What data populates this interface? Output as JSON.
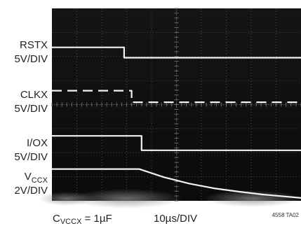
{
  "chart_data": {
    "type": "line",
    "title": "",
    "grid": true,
    "x": {
      "divisions": 10,
      "scale_label": "10µs/DIV",
      "unit": "µs",
      "per_div": 10
    },
    "y": {
      "divisions": 8
    },
    "channels": [
      {
        "name": "RSTX",
        "scale": "5V/DIV",
        "style": "solid",
        "points": [
          [
            0,
            6.38
          ],
          [
            2.9,
            6.38
          ],
          [
            2.9,
            5.95
          ],
          [
            10,
            5.95
          ]
        ]
      },
      {
        "name": "CLKX",
        "scale": "5V/DIV",
        "style": "dashed",
        "points": [
          [
            0,
            4.58
          ],
          [
            3.2,
            4.58
          ],
          [
            3.2,
            4.1
          ],
          [
            10,
            4.1
          ]
        ]
      },
      {
        "name": "I/OX",
        "scale": "5V/DIV",
        "style": "solid",
        "points": [
          [
            0,
            2.7
          ],
          [
            3.6,
            2.7
          ],
          [
            3.6,
            2.1
          ],
          [
            10,
            2.1
          ]
        ]
      },
      {
        "name_main": "V",
        "name_sub": "CCX",
        "scale": "2V/DIV",
        "style": "solid",
        "points": [
          [
            0,
            1.32
          ],
          [
            3.5,
            1.32
          ],
          [
            4.5,
            0.98
          ],
          [
            5.5,
            0.72
          ],
          [
            6.5,
            0.52
          ],
          [
            7.5,
            0.38
          ],
          [
            8.5,
            0.26
          ],
          [
            10,
            0.12
          ]
        ]
      }
    ],
    "caption": {
      "c_main": "C",
      "c_sub": "VCCX",
      "c_value": " = 1µF",
      "timebase": "10µs/DIV"
    },
    "figure_id": "4558 TA02"
  }
}
